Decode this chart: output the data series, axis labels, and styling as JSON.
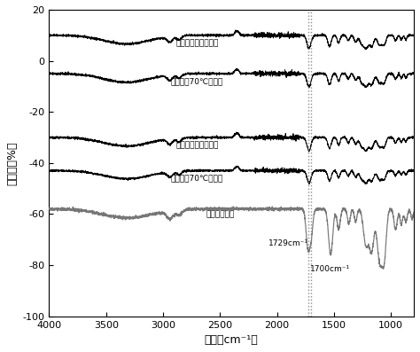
{
  "title": "",
  "xlabel": "波数（cm⁻¹）",
  "ylabel": "透过率（%）",
  "xlim": [
    800,
    4000
  ],
  "ylim": [
    -100,
    20
  ],
  "xmin": 800,
  "xmax": 4000,
  "yticks": [
    20,
    0,
    -20,
    -40,
    -60,
    -80,
    -100
  ],
  "xticks": [
    4000,
    3500,
    3000,
    2500,
    2000,
    1500,
    1000
  ],
  "vline1": 1729,
  "vline2": 1700,
  "vline1_label": "1729cm⁻¹",
  "vline2_label": "1700cm⁻¹",
  "offsets": [
    10,
    -5,
    -30,
    -43,
    -58
  ],
  "labels": [
    "单宁酸，室温处理样",
    "单宁酸，70℃处理样",
    "茶多酚，室温处理样",
    "茶多酚，70℃处理样",
    "聚氨酯空白样"
  ],
  "colors": [
    "black",
    "black",
    "black",
    "black",
    "#777777"
  ],
  "background_color": "white",
  "linewidth": 0.7,
  "figsize": [
    4.74,
    3.97
  ],
  "dpi": 100
}
